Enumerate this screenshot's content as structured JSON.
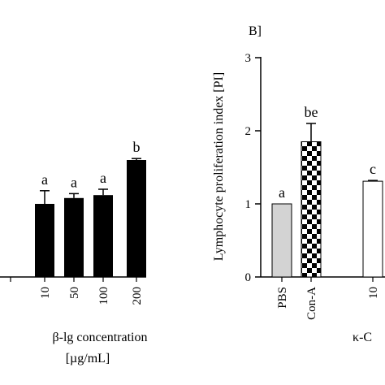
{
  "chart_data": [
    {
      "type": "bar",
      "categories": [
        "10",
        "50",
        "100",
        "200"
      ],
      "values": [
        1.0,
        1.08,
        1.12,
        1.6
      ],
      "errors": [
        0.18,
        0.06,
        0.08,
        0.02
      ],
      "significance": [
        "a",
        "a",
        "a",
        "b"
      ],
      "xlabel_line1": "β-lg concentration",
      "xlabel_line2": "[µg/mL]",
      "ylim": [
        0,
        3
      ],
      "bar_color": "#000000"
    },
    {
      "type": "bar",
      "panel_label": "B]",
      "categories": [
        "PBS",
        "Con-A",
        "10"
      ],
      "values": [
        1.0,
        1.85,
        1.31
      ],
      "errors": [
        0.0,
        0.25,
        0.01
      ],
      "significance": [
        "a",
        "be",
        "c"
      ],
      "fills": [
        "#d3d3d3",
        "checkerboard",
        "#ffffff"
      ],
      "ylabel": "Lymphocyte proliferation index [PI]",
      "xlabel": "κ-C",
      "yticks": [
        "0",
        "1",
        "2",
        "3"
      ],
      "ylim": [
        0,
        3
      ]
    }
  ]
}
